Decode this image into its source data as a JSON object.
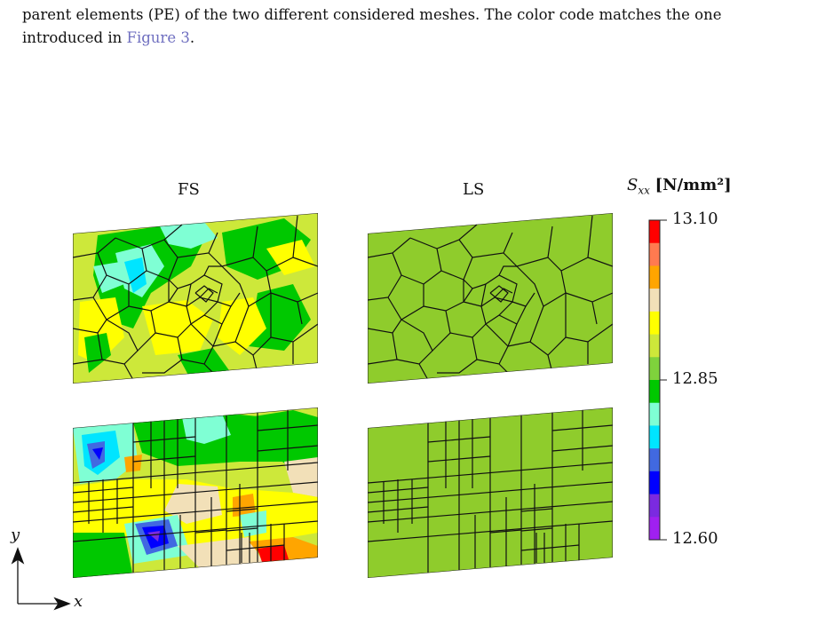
{
  "caption": {
    "line1": "parent elements (PE) of the two different considered meshes. The color code matches the one",
    "line2_prefix": "introduced in ",
    "line2_link": "Figure 3",
    "line2_suffix": "."
  },
  "panels": {
    "col1_title": "FS",
    "col2_title": "LS"
  },
  "colorbar": {
    "symbol": "S",
    "subscript": "xx",
    "unit": "[N/mm²]",
    "ticks": [
      "13.10",
      "12.85",
      "12.60"
    ],
    "colors": [
      "#ff0000",
      "#ff7a50",
      "#ffa500",
      "#f2e0b8",
      "#ffff00",
      "#cde83a",
      "#7fd23c",
      "#00c800",
      "#7fffd4",
      "#00e5ff",
      "#4169e1",
      "#0000ff",
      "#7b2ae0",
      "#a020f0"
    ]
  },
  "axes": {
    "x": "x",
    "y": "y"
  }
}
